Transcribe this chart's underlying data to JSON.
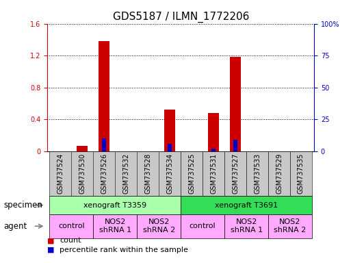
{
  "title": "GDS5187 / ILMN_1772206",
  "samples": [
    "GSM737524",
    "GSM737530",
    "GSM737526",
    "GSM737532",
    "GSM737528",
    "GSM737534",
    "GSM737525",
    "GSM737531",
    "GSM737527",
    "GSM737533",
    "GSM737529",
    "GSM737535"
  ],
  "count_values": [
    0.0,
    0.07,
    1.38,
    0.0,
    0.0,
    0.52,
    0.0,
    0.48,
    1.18,
    0.0,
    0.0,
    0.0
  ],
  "percentile_values": [
    0.0,
    0.0,
    10.0,
    0.0,
    0.0,
    6.0,
    0.0,
    2.0,
    9.0,
    0.0,
    0.0,
    0.0
  ],
  "count_color": "#cc0000",
  "percentile_color": "#0000cc",
  "ylim_left": [
    0,
    1.6
  ],
  "ylim_right": [
    0,
    100
  ],
  "yticks_left": [
    0,
    0.4,
    0.8,
    1.2,
    1.6
  ],
  "ytick_labels_left": [
    "0",
    "0.4",
    "0.8",
    "1.2",
    "1.6"
  ],
  "yticks_right": [
    0,
    25,
    50,
    75,
    100
  ],
  "ytick_labels_right": [
    "0",
    "25",
    "50",
    "75",
    "100%"
  ],
  "specimen_groups": [
    {
      "label": "xenograft T3359",
      "start": 0,
      "end": 5,
      "color": "#aaffaa"
    },
    {
      "label": "xenograft T3691",
      "start": 6,
      "end": 11,
      "color": "#33dd55"
    }
  ],
  "agent_groups": [
    {
      "label": "control",
      "start": 0,
      "end": 1,
      "color": "#ffaaff"
    },
    {
      "label": "NOS2\nshRNA 1",
      "start": 2,
      "end": 3,
      "color": "#ffaaff"
    },
    {
      "label": "NOS2\nshRNA 2",
      "start": 4,
      "end": 5,
      "color": "#ffaaff"
    },
    {
      "label": "control",
      "start": 6,
      "end": 7,
      "color": "#ffaaff"
    },
    {
      "label": "NOS2\nshRNA 1",
      "start": 8,
      "end": 9,
      "color": "#ffaaff"
    },
    {
      "label": "NOS2\nshRNA 2",
      "start": 10,
      "end": 11,
      "color": "#ffaaff"
    }
  ],
  "bar_width": 0.5,
  "percentile_bar_width": 0.18,
  "background_color": "#ffffff",
  "xtick_bg_color": "#c8c8c8",
  "specimen_label": "specimen",
  "agent_label": "agent",
  "legend_count": "count",
  "legend_percentile": "percentile rank within the sample",
  "title_fontsize": 11,
  "bar_fontsize": 8,
  "tick_fontsize": 7,
  "label_fontsize": 8.5,
  "annot_fontsize": 8
}
